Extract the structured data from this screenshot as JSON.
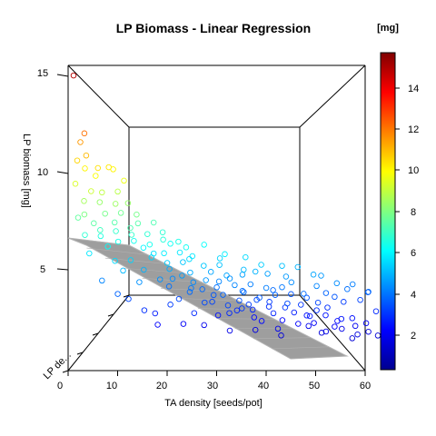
{
  "chart_data": {
    "type": "scatter",
    "title": "LP Biomass - Linear Regression",
    "xlabel": "TA density [seeds/pot]",
    "ylabel": "LP biomass [mg]",
    "zlabel": "LP de...",
    "colorbar_label": "[mg]",
    "xlim": [
      0,
      60
    ],
    "ylim": [
      2,
      15
    ],
    "color_scale_range": [
      0.4,
      15.7
    ],
    "x_ticks": [
      "0",
      "10",
      "20",
      "30",
      "40",
      "50",
      "60"
    ],
    "y_ticks": [
      "5",
      "10",
      "15"
    ],
    "colorbar_ticks": [
      "2",
      "4",
      "6",
      "8",
      "10",
      "12",
      "14"
    ],
    "colormap": "jet",
    "colormap_colors": [
      "#00008F",
      "#0000FF",
      "#0080FF",
      "#00FFFF",
      "#80FF80",
      "#FFFF00",
      "#FF8000",
      "#FF0000",
      "#800000"
    ],
    "regression_plane_color": "#9E9E9E",
    "points": [
      {
        "x": 0,
        "y": 14.9
      },
      {
        "x": 2,
        "y": 12.1
      },
      {
        "x": 1,
        "y": 11.5
      },
      {
        "x": 2,
        "y": 11.0
      },
      {
        "x": 0,
        "y": 10.6
      },
      {
        "x": 4,
        "y": 10.4
      },
      {
        "x": 6,
        "y": 10.3
      },
      {
        "x": 1,
        "y": 10.1
      },
      {
        "x": 3,
        "y": 9.9
      },
      {
        "x": 8,
        "y": 10.1
      },
      {
        "x": 10,
        "y": 9.7
      },
      {
        "x": 0,
        "y": 9.4
      },
      {
        "x": 3,
        "y": 9.2
      },
      {
        "x": 5,
        "y": 9.0
      },
      {
        "x": 8,
        "y": 8.9
      },
      {
        "x": 1,
        "y": 8.6
      },
      {
        "x": 4,
        "y": 8.4
      },
      {
        "x": 7,
        "y": 8.5
      },
      {
        "x": 11,
        "y": 8.4
      },
      {
        "x": 2,
        "y": 8.0
      },
      {
        "x": 6,
        "y": 7.9
      },
      {
        "x": 9,
        "y": 7.8
      },
      {
        "x": 12,
        "y": 7.9
      },
      {
        "x": 0,
        "y": 7.6
      },
      {
        "x": 3,
        "y": 7.5
      },
      {
        "x": 7,
        "y": 7.4
      },
      {
        "x": 10,
        "y": 7.3
      },
      {
        "x": 13,
        "y": 7.4
      },
      {
        "x": 16,
        "y": 7.3
      },
      {
        "x": 5,
        "y": 7.1
      },
      {
        "x": 8,
        "y": 6.9
      },
      {
        "x": 11,
        "y": 6.9
      },
      {
        "x": 14,
        "y": 6.8
      },
      {
        "x": 17,
        "y": 6.7
      },
      {
        "x": 1,
        "y": 6.8
      },
      {
        "x": 4,
        "y": 6.6
      },
      {
        "x": 9,
        "y": 6.5
      },
      {
        "x": 12,
        "y": 6.4
      },
      {
        "x": 15,
        "y": 6.4
      },
      {
        "x": 19,
        "y": 6.3
      },
      {
        "x": 22,
        "y": 6.3
      },
      {
        "x": 6,
        "y": 6.2
      },
      {
        "x": 13,
        "y": 6.0
      },
      {
        "x": 17,
        "y": 5.9
      },
      {
        "x": 20,
        "y": 5.8
      },
      {
        "x": 24,
        "y": 5.8
      },
      {
        "x": 3,
        "y": 5.8
      },
      {
        "x": 8,
        "y": 5.6
      },
      {
        "x": 11,
        "y": 5.5
      },
      {
        "x": 15,
        "y": 5.5
      },
      {
        "x": 18,
        "y": 5.4
      },
      {
        "x": 21,
        "y": 5.3
      },
      {
        "x": 25,
        "y": 5.3
      },
      {
        "x": 28,
        "y": 5.2
      },
      {
        "x": 10,
        "y": 5.1
      },
      {
        "x": 14,
        "y": 5.0
      },
      {
        "x": 19,
        "y": 4.9
      },
      {
        "x": 23,
        "y": 4.9
      },
      {
        "x": 27,
        "y": 4.8
      },
      {
        "x": 30,
        "y": 4.8
      },
      {
        "x": 33,
        "y": 4.7
      },
      {
        "x": 12,
        "y": 4.5
      },
      {
        "x": 16,
        "y": 4.5
      },
      {
        "x": 20,
        "y": 4.4
      },
      {
        "x": 24,
        "y": 4.4
      },
      {
        "x": 29,
        "y": 4.3
      },
      {
        "x": 32,
        "y": 4.3
      },
      {
        "x": 35,
        "y": 4.2
      },
      {
        "x": 38,
        "y": 4.2
      },
      {
        "x": 41,
        "y": 4.1
      },
      {
        "x": 18,
        "y": 4.0
      },
      {
        "x": 22,
        "y": 3.9
      },
      {
        "x": 26,
        "y": 3.9
      },
      {
        "x": 30,
        "y": 3.8
      },
      {
        "x": 34,
        "y": 3.8
      },
      {
        "x": 37,
        "y": 3.7
      },
      {
        "x": 40,
        "y": 3.7
      },
      {
        "x": 43,
        "y": 3.6
      },
      {
        "x": 46,
        "y": 3.6
      },
      {
        "x": 20,
        "y": 3.4
      },
      {
        "x": 25,
        "y": 3.4
      },
      {
        "x": 28,
        "y": 3.3
      },
      {
        "x": 31,
        "y": 3.3
      },
      {
        "x": 35,
        "y": 3.2
      },
      {
        "x": 39,
        "y": 3.2
      },
      {
        "x": 42,
        "y": 3.1
      },
      {
        "x": 45,
        "y": 3.1
      },
      {
        "x": 48,
        "y": 3.0
      },
      {
        "x": 50,
        "y": 3.0
      },
      {
        "x": 30,
        "y": 2.9
      },
      {
        "x": 33,
        "y": 2.9
      },
      {
        "x": 36,
        "y": 2.8
      },
      {
        "x": 40,
        "y": 2.8
      },
      {
        "x": 44,
        "y": 2.7
      },
      {
        "x": 47,
        "y": 2.7
      },
      {
        "x": 50,
        "y": 2.6
      },
      {
        "x": 53,
        "y": 2.6
      },
      {
        "x": 55,
        "y": 2.5
      },
      {
        "x": 35,
        "y": 2.4
      },
      {
        "x": 38,
        "y": 2.4
      },
      {
        "x": 42,
        "y": 2.3
      },
      {
        "x": 45,
        "y": 2.3
      },
      {
        "x": 48,
        "y": 2.2
      },
      {
        "x": 52,
        "y": 2.2
      },
      {
        "x": 56,
        "y": 2.1
      },
      {
        "x": 58,
        "y": 2.1
      },
      {
        "x": 40,
        "y": 2.0
      },
      {
        "x": 46,
        "y": 2.0
      },
      {
        "x": 51,
        "y": 1.9
      },
      {
        "x": 54,
        "y": 1.9
      },
      {
        "x": 57,
        "y": 1.8
      },
      {
        "x": 59,
        "y": 1.8
      },
      {
        "x": 5,
        "y": 4.3
      },
      {
        "x": 8,
        "y": 3.8
      },
      {
        "x": 10,
        "y": 3.4
      },
      {
        "x": 13,
        "y": 3.0
      },
      {
        "x": 15,
        "y": 2.7
      },
      {
        "x": 17,
        "y": 2.3
      },
      {
        "x": 22,
        "y": 2.2
      },
      {
        "x": 26,
        "y": 2.0
      },
      {
        "x": 31,
        "y": 1.9
      },
      {
        "x": 36,
        "y": 1.8
      },
      {
        "x": 41,
        "y": 1.7
      },
      {
        "x": 49,
        "y": 1.7
      },
      {
        "x": 55,
        "y": 1.6
      },
      {
        "x": 60,
        "y": 1.6
      },
      {
        "x": 18,
        "y": 6.8
      },
      {
        "x": 21,
        "y": 6.5
      },
      {
        "x": 26,
        "y": 6.2
      },
      {
        "x": 30,
        "y": 5.9
      },
      {
        "x": 34,
        "y": 5.6
      },
      {
        "x": 37,
        "y": 5.4
      },
      {
        "x": 41,
        "y": 5.2
      },
      {
        "x": 44,
        "y": 5.0
      },
      {
        "x": 47,
        "y": 4.8
      },
      {
        "x": 50,
        "y": 4.6
      },
      {
        "x": 53,
        "y": 4.4
      },
      {
        "x": 56,
        "y": 4.2
      },
      {
        "x": 59,
        "y": 4.0
      },
      {
        "x": 52,
        "y": 3.6
      },
      {
        "x": 57,
        "y": 3.3
      },
      {
        "x": 60,
        "y": 2.9
      },
      {
        "x": 27,
        "y": 3.6
      },
      {
        "x": 32,
        "y": 3.5
      },
      {
        "x": 37,
        "y": 3.4
      },
      {
        "x": 43,
        "y": 3.4
      },
      {
        "x": 49,
        "y": 3.3
      },
      {
        "x": 54,
        "y": 3.2
      },
      {
        "x": 23,
        "y": 4.1
      },
      {
        "x": 28,
        "y": 4.0
      },
      {
        "x": 33,
        "y": 4.0
      },
      {
        "x": 39,
        "y": 3.9
      },
      {
        "x": 45,
        "y": 3.9
      },
      {
        "x": 51,
        "y": 3.8
      },
      {
        "x": 16,
        "y": 5.7
      },
      {
        "x": 23,
        "y": 5.6
      },
      {
        "x": 29,
        "y": 5.5
      },
      {
        "x": 36,
        "y": 5.0
      },
      {
        "x": 42,
        "y": 4.6
      },
      {
        "x": 48,
        "y": 4.3
      },
      {
        "x": 54,
        "y": 4.0
      },
      {
        "x": 58,
        "y": 3.7
      },
      {
        "x": 44,
        "y": 4.4
      },
      {
        "x": 39,
        "y": 4.7
      },
      {
        "x": 34,
        "y": 5.1
      },
      {
        "x": 31,
        "y": 4.5
      },
      {
        "x": 26,
        "y": 4.6
      },
      {
        "x": 21,
        "y": 4.7
      },
      {
        "x": 46,
        "y": 2.5
      },
      {
        "x": 52,
        "y": 2.4
      },
      {
        "x": 38,
        "y": 3.0
      },
      {
        "x": 34,
        "y": 3.1
      },
      {
        "x": 29,
        "y": 2.6
      },
      {
        "x": 24,
        "y": 2.9
      },
      {
        "x": 19,
        "y": 3.2
      }
    ]
  }
}
